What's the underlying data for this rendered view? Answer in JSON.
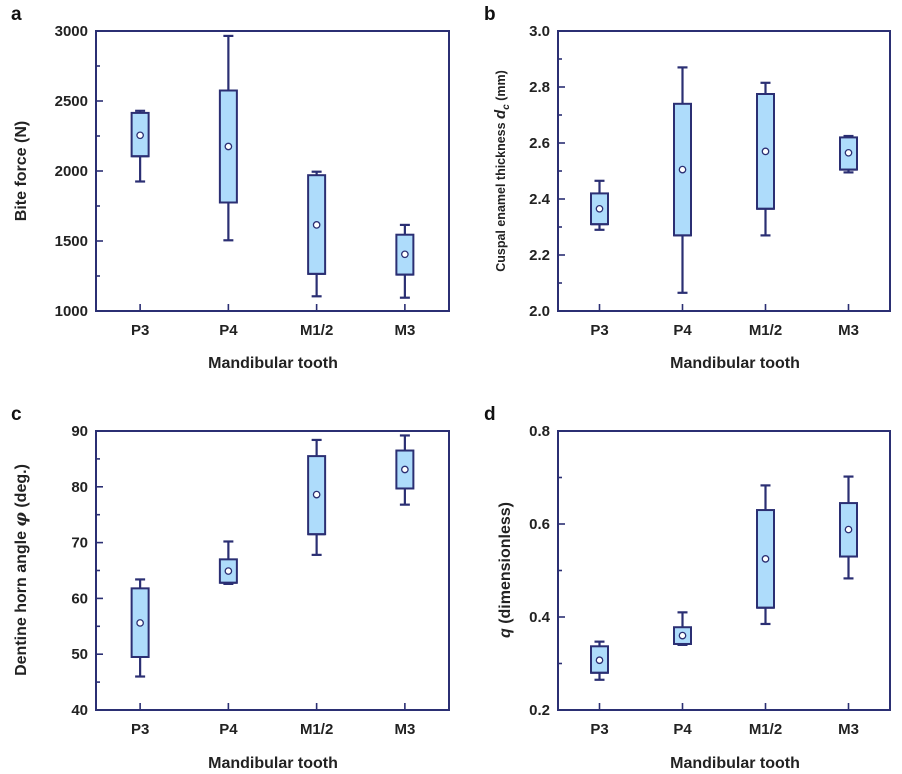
{
  "chart_data": [
    {
      "type": "box",
      "panel": "a",
      "categories": [
        "P3",
        "P4",
        "M1/2",
        "M3"
      ],
      "xlabel": "Mandibular tooth",
      "ylabel": "Bite force (N)",
      "ylim": [
        1000,
        3000
      ],
      "yticks": [
        1000,
        1500,
        2000,
        2500,
        3000
      ],
      "boxes": [
        {
          "min": 1925,
          "q1": 2105,
          "median": 2105,
          "q3": 2415,
          "max": 2430,
          "mean": 2255
        },
        {
          "min": 1505,
          "q1": 1775,
          "median": 1775,
          "q3": 2575,
          "max": 2965,
          "mean": 2175
        },
        {
          "min": 1105,
          "q1": 1265,
          "median": 1265,
          "q3": 1970,
          "max": 1995,
          "mean": 1615
        },
        {
          "min": 1095,
          "q1": 1260,
          "median": 1260,
          "q3": 1545,
          "max": 1615,
          "mean": 1405
        }
      ]
    },
    {
      "type": "box",
      "panel": "b",
      "categories": [
        "P3",
        "P4",
        "M1/2",
        "M3"
      ],
      "xlabel": "Mandibular tooth",
      "ylabel_main": "Cuspal enamel thickness ",
      "ylabel_var": "d",
      "ylabel_sub": "c",
      "ylabel_unit": " (mm)",
      "ylim": [
        2.0,
        3.0
      ],
      "yticks": [
        "2.0",
        "2.2",
        "2.4",
        "2.6",
        "2.8",
        "3.0"
      ],
      "boxes": [
        {
          "min": 2.29,
          "q1": 2.31,
          "median": 2.31,
          "q3": 2.42,
          "max": 2.465,
          "mean": 2.365
        },
        {
          "min": 2.065,
          "q1": 2.27,
          "median": 2.27,
          "q3": 2.74,
          "max": 2.87,
          "mean": 2.505
        },
        {
          "min": 2.27,
          "q1": 2.365,
          "median": 2.365,
          "q3": 2.775,
          "max": 2.815,
          "mean": 2.57
        },
        {
          "min": 2.495,
          "q1": 2.505,
          "median": 2.505,
          "q3": 2.62,
          "max": 2.625,
          "mean": 2.565
        }
      ]
    },
    {
      "type": "box",
      "panel": "c",
      "categories": [
        "P3",
        "P4",
        "M1/2",
        "M3"
      ],
      "xlabel": "Mandibular tooth",
      "ylabel_main": "Dentine horn angle ",
      "ylabel_var": "φ",
      "ylabel_unit": " (deg.)",
      "ylim": [
        40,
        90
      ],
      "yticks": [
        40,
        50,
        60,
        70,
        80,
        90
      ],
      "boxes": [
        {
          "min": 46,
          "q1": 49.5,
          "median": 49.5,
          "q3": 61.8,
          "max": 63.4,
          "mean": 55.6
        },
        {
          "min": 62.6,
          "q1": 62.8,
          "median": 62.8,
          "q3": 67,
          "max": 70.2,
          "mean": 64.9
        },
        {
          "min": 67.8,
          "q1": 71.5,
          "median": 71.5,
          "q3": 85.5,
          "max": 88.4,
          "mean": 78.6
        },
        {
          "min": 76.8,
          "q1": 79.7,
          "median": 79.7,
          "q3": 86.5,
          "max": 89.2,
          "mean": 83.1
        }
      ]
    },
    {
      "type": "box",
      "panel": "d",
      "categories": [
        "P3",
        "P4",
        "M1/2",
        "M3"
      ],
      "xlabel": "Mandibular tooth",
      "ylabel_var": "q",
      "ylabel_unit": " (dimensionless)",
      "ylim": [
        0.2,
        0.8
      ],
      "yticks": [
        "0.2",
        "0.4",
        "0.6",
        "0.8"
      ],
      "boxes": [
        {
          "min": 0.265,
          "q1": 0.28,
          "median": 0.28,
          "q3": 0.337,
          "max": 0.347,
          "mean": 0.307
        },
        {
          "min": 0.34,
          "q1": 0.342,
          "median": 0.342,
          "q3": 0.378,
          "max": 0.41,
          "mean": 0.36
        },
        {
          "min": 0.385,
          "q1": 0.42,
          "median": 0.42,
          "q3": 0.63,
          "max": 0.683,
          "mean": 0.525
        },
        {
          "min": 0.483,
          "q1": 0.53,
          "median": 0.53,
          "q3": 0.645,
          "max": 0.702,
          "mean": 0.588
        }
      ]
    }
  ]
}
